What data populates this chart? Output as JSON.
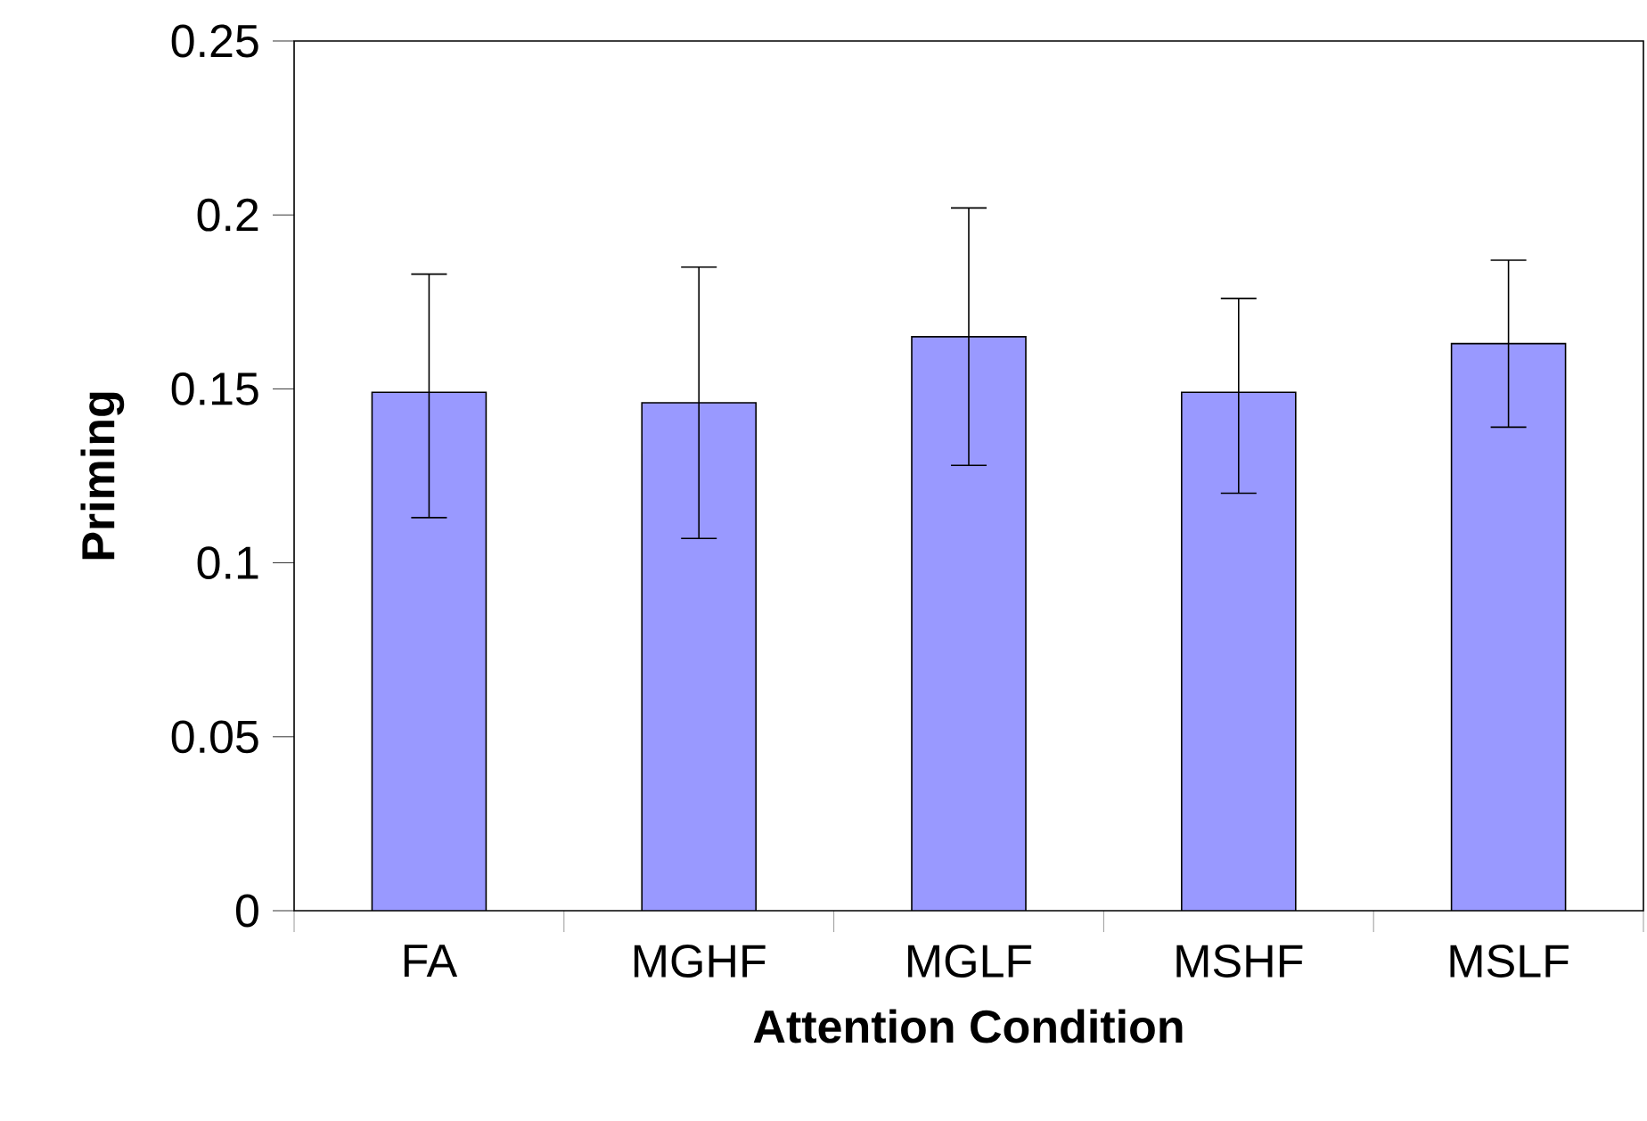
{
  "chart_data": {
    "type": "bar",
    "xlabel": "Attention Condition",
    "ylabel": "Priming",
    "categories": [
      "FA",
      "MGHF",
      "MGLF",
      "MSHF",
      "MSLF"
    ],
    "values": [
      0.149,
      0.146,
      0.165,
      0.149,
      0.163
    ],
    "errors": [
      [
        0.113,
        0.183
      ],
      [
        0.107,
        0.185
      ],
      [
        0.128,
        0.202
      ],
      [
        0.12,
        0.176
      ],
      [
        0.139,
        0.187
      ]
    ],
    "color": "#9999ff",
    "ylim": [
      0,
      0.25
    ],
    "yticks": [
      0,
      0.05,
      0.1,
      0.15,
      0.2,
      0.25
    ],
    "grid": false
  }
}
